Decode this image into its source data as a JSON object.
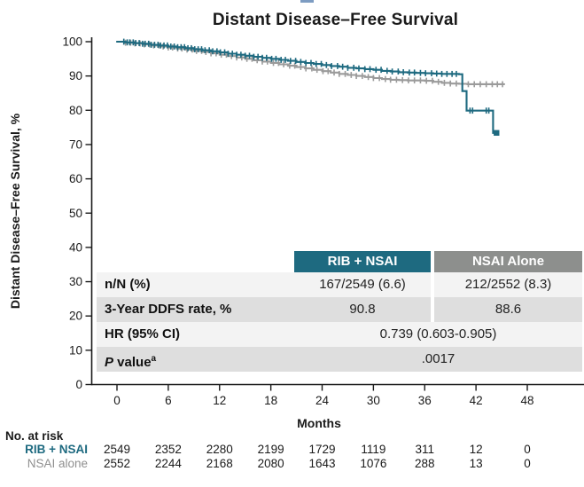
{
  "title": "Distant Disease–Free Survival",
  "colors": {
    "rib_teal": "#1e6a80",
    "nsai_header_gray": "#8d8f8d",
    "nsai_curve_gray": "#9b9b9b",
    "nsai_label_gray": "#8f8f8f",
    "row_light": "#f3f3f3",
    "row_dark": "#dedede",
    "axis": "#1a1a1a",
    "artifact_blue": "#7d9cc2"
  },
  "chart_data": {
    "type": "line",
    "subtype": "kaplan-meier-step",
    "title": "Distant Disease–Free Survival",
    "xlabel": "Months",
    "ylabel": "Distant Disease–Free Survival, %",
    "xlim": [
      0,
      48
    ],
    "xticks": [
      0,
      6,
      12,
      18,
      24,
      30,
      36,
      42,
      48
    ],
    "ylim": [
      0,
      100
    ],
    "yticks": [
      0,
      10,
      20,
      30,
      40,
      50,
      60,
      70,
      80,
      90,
      100
    ],
    "grid": false,
    "legend_position": "none",
    "series": [
      {
        "name": "NSAI alone",
        "color": "#9b9b9b",
        "points": [
          [
            0,
            100
          ],
          [
            1,
            99.7
          ],
          [
            2,
            99.5
          ],
          [
            3,
            99.2
          ],
          [
            4,
            98.9
          ],
          [
            5,
            98.6
          ],
          [
            6,
            98.3
          ],
          [
            7,
            98.0
          ],
          [
            8,
            97.7
          ],
          [
            9,
            97.3
          ],
          [
            10,
            97.0
          ],
          [
            11,
            96.6
          ],
          [
            12,
            96.2
          ],
          [
            13,
            95.8
          ],
          [
            14,
            95.4
          ],
          [
            15,
            95.0
          ],
          [
            16,
            94.6
          ],
          [
            17,
            94.2
          ],
          [
            18,
            93.8
          ],
          [
            19,
            93.4
          ],
          [
            20,
            93.0
          ],
          [
            21,
            92.6
          ],
          [
            22,
            92.2
          ],
          [
            23,
            91.8
          ],
          [
            24,
            91.4
          ],
          [
            25,
            91.0
          ],
          [
            26,
            90.6
          ],
          [
            27,
            90.3
          ],
          [
            28,
            90.0
          ],
          [
            29,
            89.7
          ],
          [
            30,
            89.4
          ],
          [
            31,
            89.1
          ],
          [
            32,
            88.9
          ],
          [
            33,
            88.8
          ],
          [
            34,
            88.7
          ],
          [
            36,
            88.6
          ],
          [
            37,
            88.3
          ],
          [
            38,
            88.0
          ],
          [
            39,
            87.8
          ],
          [
            40,
            87.7
          ],
          [
            41,
            87.6
          ],
          [
            45.3,
            87.6
          ]
        ],
        "censor_months": [
          1,
          1.6,
          2.1,
          2.7,
          3.2,
          3.8,
          4.3,
          4.9,
          5.4,
          6,
          6.5,
          7.1,
          7.6,
          8.2,
          8.8,
          9.3,
          9.9,
          10.4,
          11,
          11.6,
          12.2,
          12.8,
          13.4,
          14,
          14.6,
          15.2,
          15.8,
          16.4,
          17,
          17.6,
          18.3,
          18.9,
          19.5,
          20.2,
          20.8,
          21.5,
          22.1,
          22.8,
          23.4,
          24.1,
          24.7,
          25.4,
          26,
          26.7,
          27.4,
          28,
          28.7,
          29.4,
          30,
          30.7,
          31.4,
          32,
          32.7,
          33.4,
          34.1,
          34.8,
          35.5,
          36.2,
          36.9,
          37.6,
          38.3,
          39,
          39.7,
          40.4,
          41.1,
          41.8,
          42.5,
          43.2,
          43.9,
          44.5,
          45.1
        ],
        "end_marker": false
      },
      {
        "name": "RIB + NSAI",
        "color": "#1e6a80",
        "points": [
          [
            0,
            100
          ],
          [
            1,
            99.8
          ],
          [
            2,
            99.6
          ],
          [
            3,
            99.4
          ],
          [
            4,
            99.1
          ],
          [
            5,
            98.9
          ],
          [
            6,
            98.6
          ],
          [
            7,
            98.4
          ],
          [
            8,
            98.1
          ],
          [
            9,
            97.8
          ],
          [
            10,
            97.5
          ],
          [
            11,
            97.2
          ],
          [
            12,
            96.9
          ],
          [
            13,
            96.5
          ],
          [
            14,
            96.2
          ],
          [
            15,
            95.9
          ],
          [
            16,
            95.6
          ],
          [
            17,
            95.3
          ],
          [
            18,
            95.0
          ],
          [
            19,
            94.7
          ],
          [
            20,
            94.4
          ],
          [
            21,
            94.1
          ],
          [
            22,
            93.8
          ],
          [
            23,
            93.5
          ],
          [
            24,
            93.2
          ],
          [
            25,
            92.9
          ],
          [
            26,
            92.7
          ],
          [
            27,
            92.4
          ],
          [
            28,
            92.2
          ],
          [
            29,
            92.0
          ],
          [
            30,
            91.8
          ],
          [
            31,
            91.5
          ],
          [
            32,
            91.3
          ],
          [
            33,
            91.1
          ],
          [
            34,
            91.0
          ],
          [
            35,
            90.9
          ],
          [
            36,
            90.8
          ],
          [
            37,
            90.7
          ],
          [
            38,
            90.6
          ],
          [
            40,
            90.5
          ],
          [
            40.4,
            85.6
          ],
          [
            40.9,
            79.9
          ],
          [
            44,
            73.4
          ],
          [
            44.4,
            73.4
          ]
        ],
        "censor_months": [
          0.8,
          1.2,
          1.5,
          1.9,
          2.2,
          2.6,
          3,
          3.3,
          3.7,
          4,
          4.4,
          4.8,
          5.1,
          5.5,
          5.9,
          6.3,
          6.7,
          7.1,
          7.5,
          7.9,
          8.3,
          8.7,
          9.1,
          9.5,
          9.9,
          10.3,
          10.8,
          11.2,
          11.7,
          12.1,
          12.6,
          13,
          13.5,
          14,
          14.5,
          15,
          15.5,
          16,
          16.5,
          17,
          17.5,
          18.1,
          18.6,
          19.2,
          19.7,
          20.3,
          20.9,
          21.5,
          22.1,
          22.7,
          23.3,
          23.9,
          24.5,
          25.1,
          25.8,
          26.4,
          27,
          27.7,
          28.3,
          29,
          29.6,
          30.3,
          30.9,
          31.6,
          32.2,
          32.9,
          33.5,
          34.2,
          34.8,
          35.5,
          36.1,
          36.8,
          37.4,
          38,
          38.6,
          39.2,
          39.7,
          41.3,
          41.6,
          43.2,
          43.5
        ],
        "end_marker": true
      }
    ]
  },
  "stats_table": {
    "columns": [
      "RIB + NSAI",
      "NSAI Alone"
    ],
    "rows": [
      {
        "label": "n/N (%)",
        "values": [
          "167/2549 (6.6)",
          "212/2552 (8.3)"
        ],
        "span": false
      },
      {
        "label": "3-Year DDFS rate, %",
        "values": [
          "90.8",
          "88.6"
        ],
        "span": false
      },
      {
        "label": "HR (95% CI)",
        "values": [
          "0.739 (0.603-0.905)"
        ],
        "span": true
      },
      {
        "label": " value",
        "italic_prefix": "P",
        "sup": "a",
        "values": [
          ".0017"
        ],
        "span": true
      }
    ]
  },
  "at_risk": {
    "title": "No. at risk",
    "months": [
      0,
      6,
      12,
      18,
      24,
      30,
      36,
      42,
      48
    ],
    "rows": [
      {
        "label": "RIB + NSAI",
        "color": "#1e6a80",
        "bold": true,
        "counts": [
          "2549",
          "2352",
          "2280",
          "2199",
          "1729",
          "1119",
          "311",
          "12",
          "0"
        ]
      },
      {
        "label": "NSAI alone",
        "color": "#8f8f8f",
        "bold": false,
        "counts": [
          "2552",
          "2244",
          "2168",
          "2080",
          "1643",
          "1076",
          "288",
          "13",
          "0"
        ]
      }
    ]
  },
  "xlabel": "Months"
}
